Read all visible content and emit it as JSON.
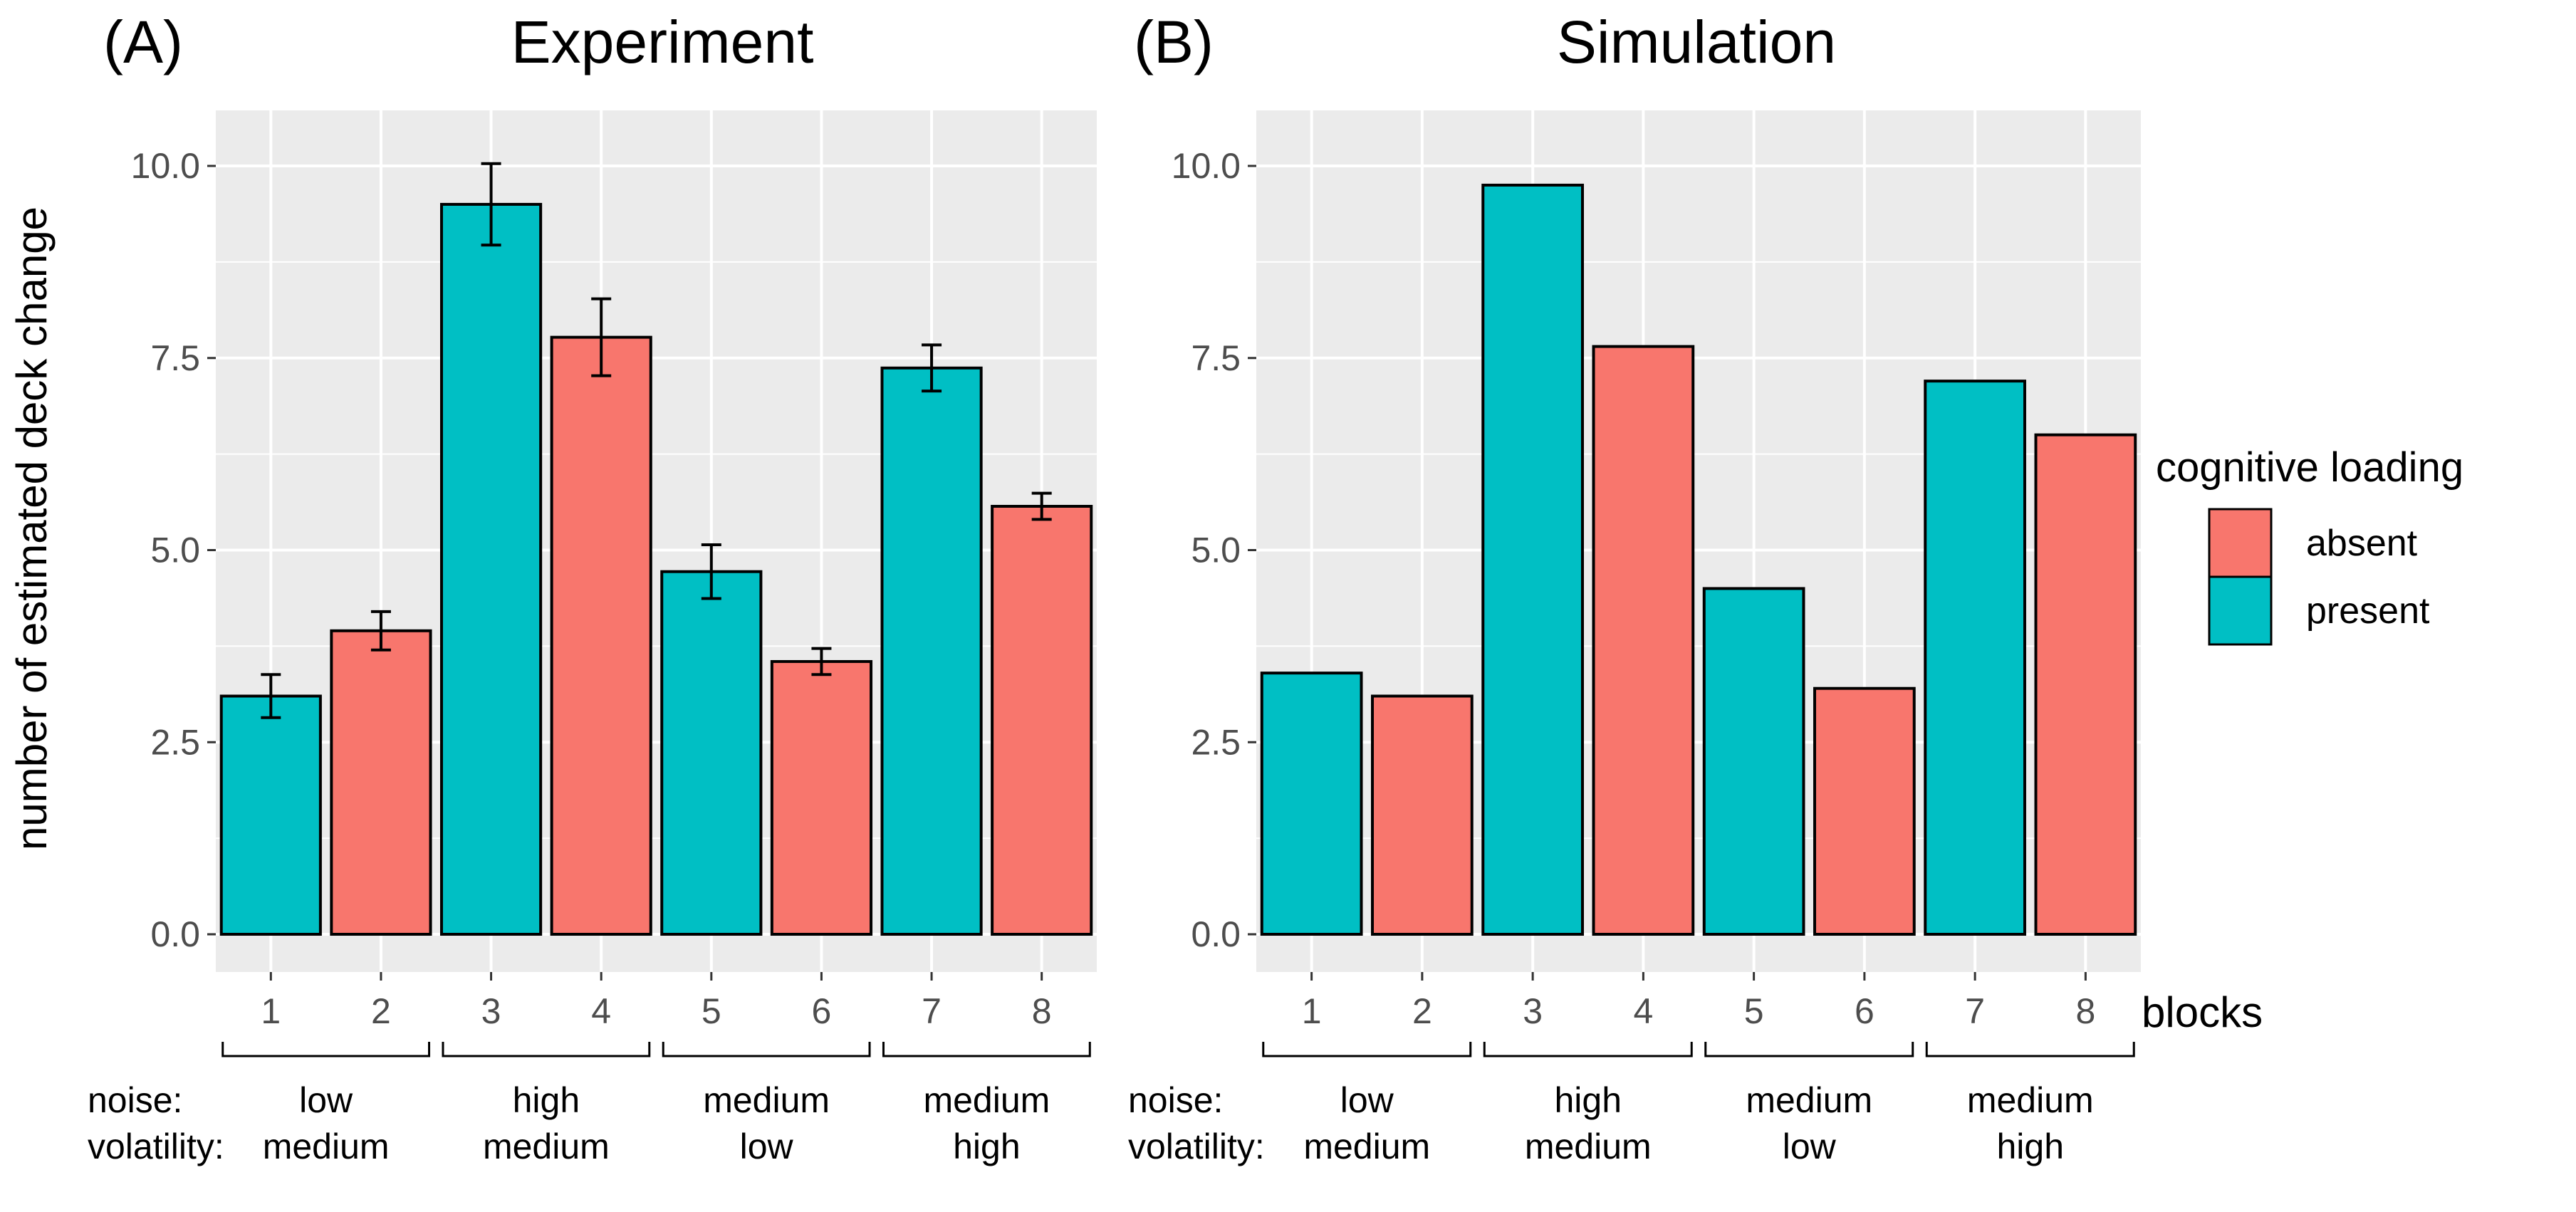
{
  "colors": {
    "absent": "#F8766D",
    "present": "#00BFC4",
    "panel_bg": "#EBEBEB",
    "grid": "#FFFFFF",
    "bar_outline": "#000000"
  },
  "chart_data": [
    {
      "type": "bar",
      "panel_tag": "(A)",
      "title": "Experiment",
      "ylabel": "number of estimated deck change",
      "xlabel": "",
      "ylim": [
        0,
        11
      ],
      "yticks": [
        "0.0",
        "2.5",
        "5.0",
        "7.5",
        "10.0"
      ],
      "ytick_values": [
        0,
        2.5,
        5,
        7.5,
        10
      ],
      "categories": [
        "1",
        "2",
        "3",
        "4",
        "5",
        "6",
        "7",
        "8"
      ],
      "values": [
        3.1,
        3.95,
        9.5,
        7.77,
        4.72,
        3.55,
        7.37,
        5.57
      ],
      "error": [
        0.28,
        0.25,
        0.53,
        0.5,
        0.35,
        0.17,
        0.3,
        0.17
      ],
      "loading": [
        "present",
        "absent",
        "present",
        "absent",
        "present",
        "absent",
        "present",
        "absent"
      ]
    },
    {
      "type": "bar",
      "panel_tag": "(B)",
      "title": "Simulation",
      "ylabel": "",
      "xlabel": "blocks",
      "ylim": [
        0,
        11
      ],
      "yticks": [
        "0.0",
        "2.5",
        "5.0",
        "7.5",
        "10.0"
      ],
      "ytick_values": [
        0,
        2.5,
        5,
        7.5,
        10
      ],
      "categories": [
        "1",
        "2",
        "3",
        "4",
        "5",
        "6",
        "7",
        "8"
      ],
      "values": [
        3.4,
        3.1,
        9.75,
        7.65,
        4.5,
        3.2,
        7.2,
        6.5
      ],
      "loading": [
        "present",
        "absent",
        "present",
        "absent",
        "present",
        "absent",
        "present",
        "absent"
      ]
    }
  ],
  "conditions": {
    "noise_label": "noise:",
    "volatility_label": "volatility:",
    "groups": [
      {
        "noise": "low",
        "volatility": "medium"
      },
      {
        "noise": "high",
        "volatility": "medium"
      },
      {
        "noise": "medium",
        "volatility": "low"
      },
      {
        "noise": "medium",
        "volatility": "high"
      }
    ]
  },
  "legend": {
    "title": "cognitive loading",
    "items": [
      {
        "key": "absent",
        "label": "absent"
      },
      {
        "key": "present",
        "label": "present"
      }
    ]
  }
}
